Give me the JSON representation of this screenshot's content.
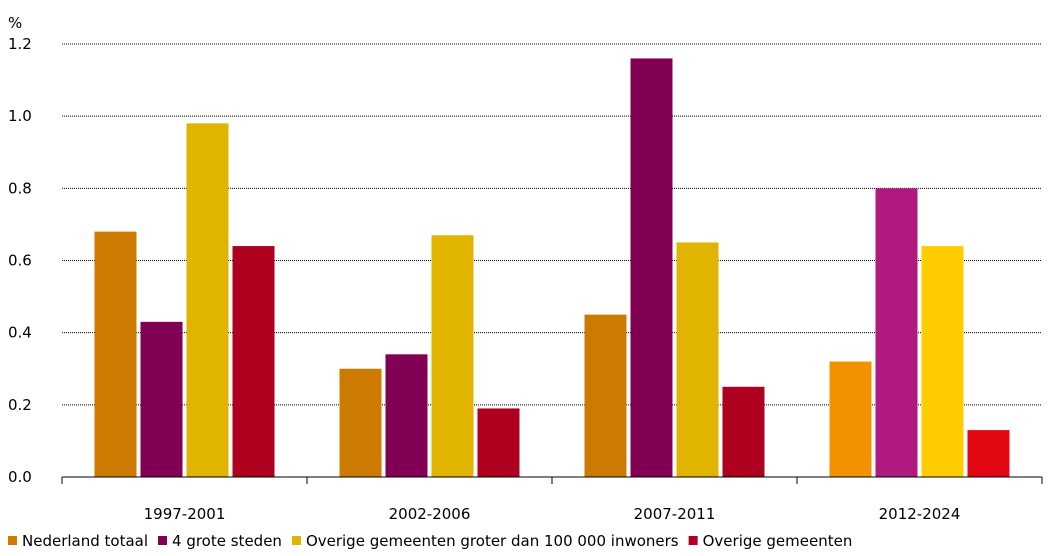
{
  "chart_data": {
    "type": "bar",
    "ylabel": "%",
    "ylim": [
      0,
      1.2
    ],
    "yticks": [
      "0.0",
      "0.2",
      "0.4",
      "0.6",
      "0.8",
      "1.0",
      "1.2"
    ],
    "grid": true,
    "legend_position": "bottom",
    "categories": [
      "1997-2001",
      "2002-2006",
      "2007-2011",
      "2012-2024"
    ],
    "series": [
      {
        "name": "Nederland totaal",
        "values": [
          0.68,
          0.3,
          0.45,
          0.32
        ],
        "colors": [
          "#CC7A00",
          "#CC7A00",
          "#CC7A00",
          "#F39200"
        ]
      },
      {
        "name": "4 grote steden",
        "values": [
          0.43,
          0.34,
          1.16,
          0.8
        ],
        "colors": [
          "#820053",
          "#820053",
          "#820053",
          "#B0197E"
        ]
      },
      {
        "name": "Overige gemeenten groter dan 100 000 inwoners",
        "values": [
          0.98,
          0.67,
          0.65,
          0.64
        ],
        "colors": [
          "#E1B400",
          "#E1B400",
          "#E1B400",
          "#FFCC00"
        ]
      },
      {
        "name": "Overige gemeenten",
        "values": [
          0.64,
          0.19,
          0.25,
          0.13
        ],
        "colors": [
          "#AF0020",
          "#AF0020",
          "#AF0020",
          "#E30613"
        ]
      }
    ],
    "legend_colors": [
      "#CC7A00",
      "#820053",
      "#E1B400",
      "#AF0020"
    ]
  }
}
